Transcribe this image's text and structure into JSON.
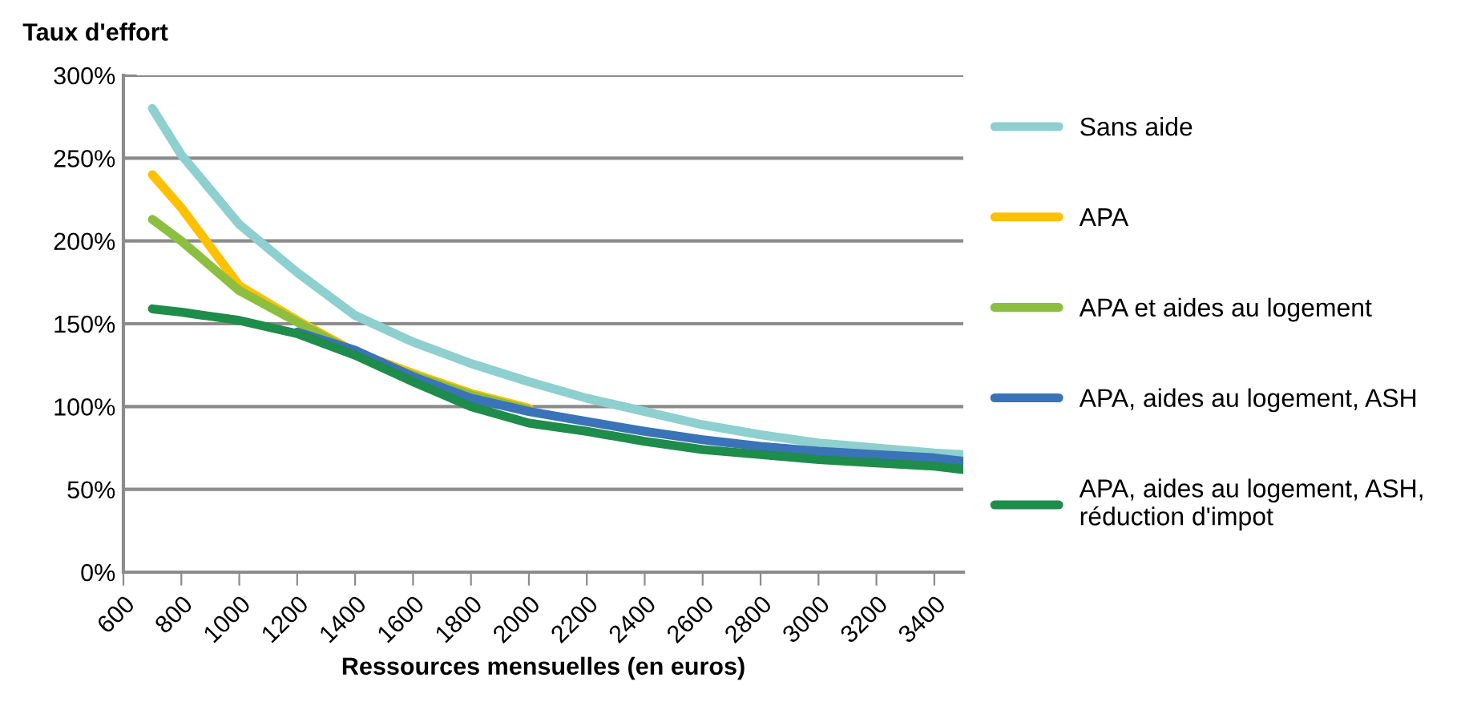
{
  "chart_data": {
    "type": "line",
    "ylabel": "Taux d'effort",
    "xlabel": "Ressources mensuelles (en euros)",
    "x": [
      700,
      800,
      1000,
      1200,
      1400,
      1600,
      1800,
      2000,
      2200,
      2400,
      2600,
      2800,
      3000,
      3200,
      3400,
      3500
    ],
    "series": [
      {
        "name": "Sans aide",
        "color": "#8ecfcf",
        "values": [
          280,
          252,
          210,
          181,
          155,
          139,
          126,
          115,
          105,
          97,
          89,
          83,
          78,
          75,
          72,
          71
        ]
      },
      {
        "name": "APA",
        "color": "#ffc000",
        "values": [
          240,
          220,
          173,
          152,
          133,
          120,
          108,
          99,
          null,
          null,
          null,
          null,
          null,
          null,
          null,
          null
        ]
      },
      {
        "name": "APA et aides au logement",
        "color": "#8cbf3f",
        "values": [
          213,
          200,
          170,
          151,
          132,
          119,
          107,
          98,
          null,
          null,
          null,
          null,
          null,
          null,
          null,
          null
        ]
      },
      {
        "name": "APA, aides au logement, ASH",
        "color": "#3a73b8",
        "values": [
          null,
          null,
          null,
          145,
          134,
          118,
          105,
          97,
          91,
          85,
          80,
          76,
          73,
          71,
          69,
          67
        ]
      },
      {
        "name": "APA, aides au logement, ASH,\nréduction d'impot",
        "color": "#1e8c4a",
        "values": [
          159,
          157,
          152,
          144,
          131,
          115,
          100,
          90,
          85,
          79,
          74,
          71,
          68,
          66,
          64,
          62
        ]
      }
    ],
    "xlim": [
      600,
      3500
    ],
    "xticks": [
      600,
      800,
      1000,
      1200,
      1400,
      1600,
      1800,
      2000,
      2200,
      2400,
      2600,
      2800,
      3000,
      3200,
      3400
    ],
    "ylim": [
      0,
      300
    ],
    "yticks": [
      {
        "value": 0,
        "label": "0%"
      },
      {
        "value": 50,
        "label": "50%"
      },
      {
        "value": 100,
        "label": "100%"
      },
      {
        "value": 150,
        "label": "150%"
      },
      {
        "value": 200,
        "label": "200%"
      },
      {
        "value": 250,
        "label": "250%"
      },
      {
        "value": 300,
        "label": "300%"
      }
    ],
    "grid": "y",
    "legend": "right",
    "line_style": "solid",
    "marker": "none"
  }
}
